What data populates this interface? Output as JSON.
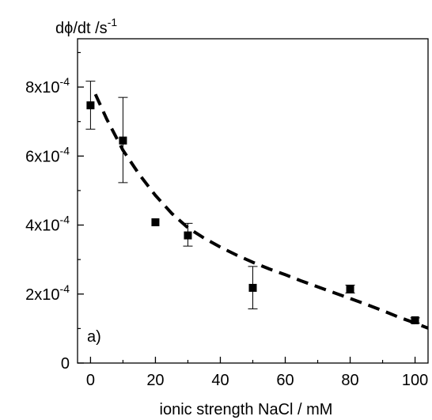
{
  "chart_data": {
    "type": "scatter",
    "title": "",
    "ylabel": "dϕ/dt /s",
    "ylabel_superscript": "-1",
    "xlabel": "ionic strength NaCl / mM",
    "xlim": [
      -4,
      104
    ],
    "ylim": [
      0,
      0.00094
    ],
    "x_ticks": [
      0,
      20,
      40,
      60,
      80,
      100
    ],
    "x_tick_labels": [
      "0",
      "20",
      "40",
      "60",
      "80",
      "100"
    ],
    "y_ticks": [
      0,
      0.0002,
      0.0004,
      0.0006,
      0.0008
    ],
    "y_tick_labels": [
      {
        "base": "0",
        "exp": ""
      },
      {
        "base": "2x10",
        "exp": "-4"
      },
      {
        "base": "4x10",
        "exp": "-4"
      },
      {
        "base": "6x10",
        "exp": "-4"
      },
      {
        "base": "8x10",
        "exp": "-4"
      }
    ],
    "annotation": "a)",
    "grid": false,
    "legend": "none",
    "series": [
      {
        "marker": "square",
        "color": "#000000",
        "points": [
          {
            "x": 0,
            "y": 0.000747,
            "err_low": 0.000678,
            "err_high": 0.000817
          },
          {
            "x": 10,
            "y": 0.000645,
            "err_low": 0.000523,
            "err_high": 0.00077
          },
          {
            "x": 20,
            "y": 0.000408,
            "err_low": 0.000408,
            "err_high": 0.000408
          },
          {
            "x": 30,
            "y": 0.00037,
            "err_low": 0.000339,
            "err_high": 0.000405
          },
          {
            "x": 50,
            "y": 0.000218,
            "err_low": 0.000157,
            "err_high": 0.00028
          },
          {
            "x": 80,
            "y": 0.000214,
            "err_low": 0.000203,
            "err_high": 0.000226
          },
          {
            "x": 100,
            "y": 0.000124,
            "err_low": 0.000116,
            "err_high": 0.000131
          }
        ]
      }
    ],
    "fit_curve": {
      "style": "dashed",
      "color": "#000000",
      "x": [
        1.5,
        5,
        10,
        15,
        20,
        25,
        30,
        35,
        40,
        45,
        50,
        55,
        60,
        65,
        70,
        75,
        80,
        85,
        90,
        95,
        100,
        104
      ],
      "y": [
        0.000779,
        0.000707,
        0.000617,
        0.000547,
        0.000486,
        0.000434,
        0.000392,
        0.000362,
        0.000336,
        0.000313,
        0.000292,
        0.000273,
        0.000256,
        0.000238,
        0.000221,
        0.000204,
        0.000187,
        0.00017,
        0.000152,
        0.000133,
        0.000116,
        0.000101
      ]
    }
  }
}
